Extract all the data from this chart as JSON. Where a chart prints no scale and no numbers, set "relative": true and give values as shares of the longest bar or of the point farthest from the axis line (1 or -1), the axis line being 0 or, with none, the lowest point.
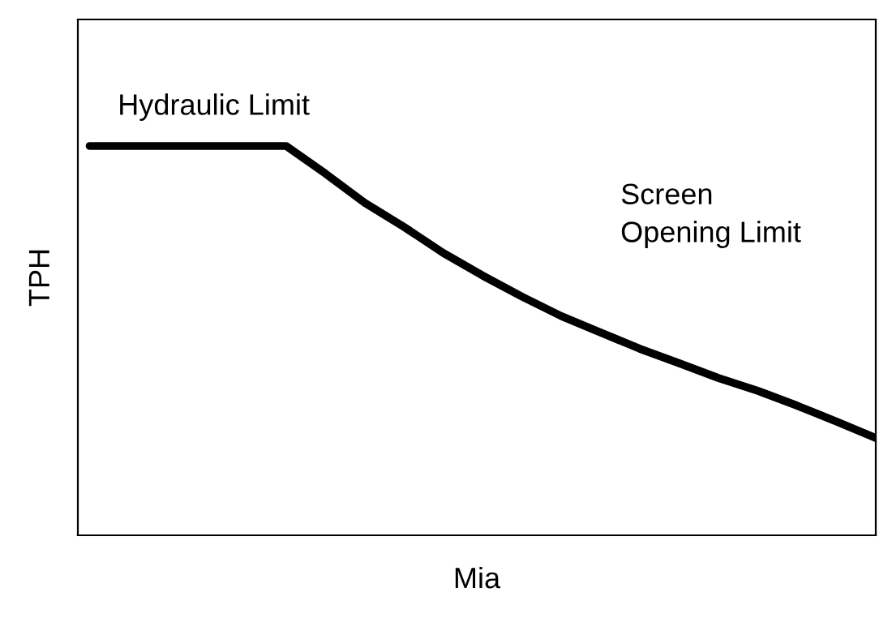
{
  "chart_data": {
    "type": "line",
    "relative": true,
    "xlabel": "Mia",
    "ylabel": "TPH",
    "categories": [
      null,
      null,
      null,
      null,
      null,
      null,
      null,
      null,
      null,
      null,
      null,
      null,
      null,
      null,
      null,
      null,
      null,
      null,
      null,
      null,
      null
    ],
    "series": [
      {
        "color": "#000000",
        "values": [
          1,
          1,
          1,
          1,
          1,
          1,
          0.929,
          0.854,
          0.792,
          0.725,
          0.667,
          0.613,
          0.563,
          0.521,
          0.479,
          0.442,
          0.404,
          0.371,
          0.333,
          0.292,
          0.25
        ]
      }
    ],
    "annotations": [
      "Hydraulic Limit",
      "Screen\nOpening Limit"
    ],
    "legend": false,
    "marker": "none",
    "line_style": "solid"
  }
}
